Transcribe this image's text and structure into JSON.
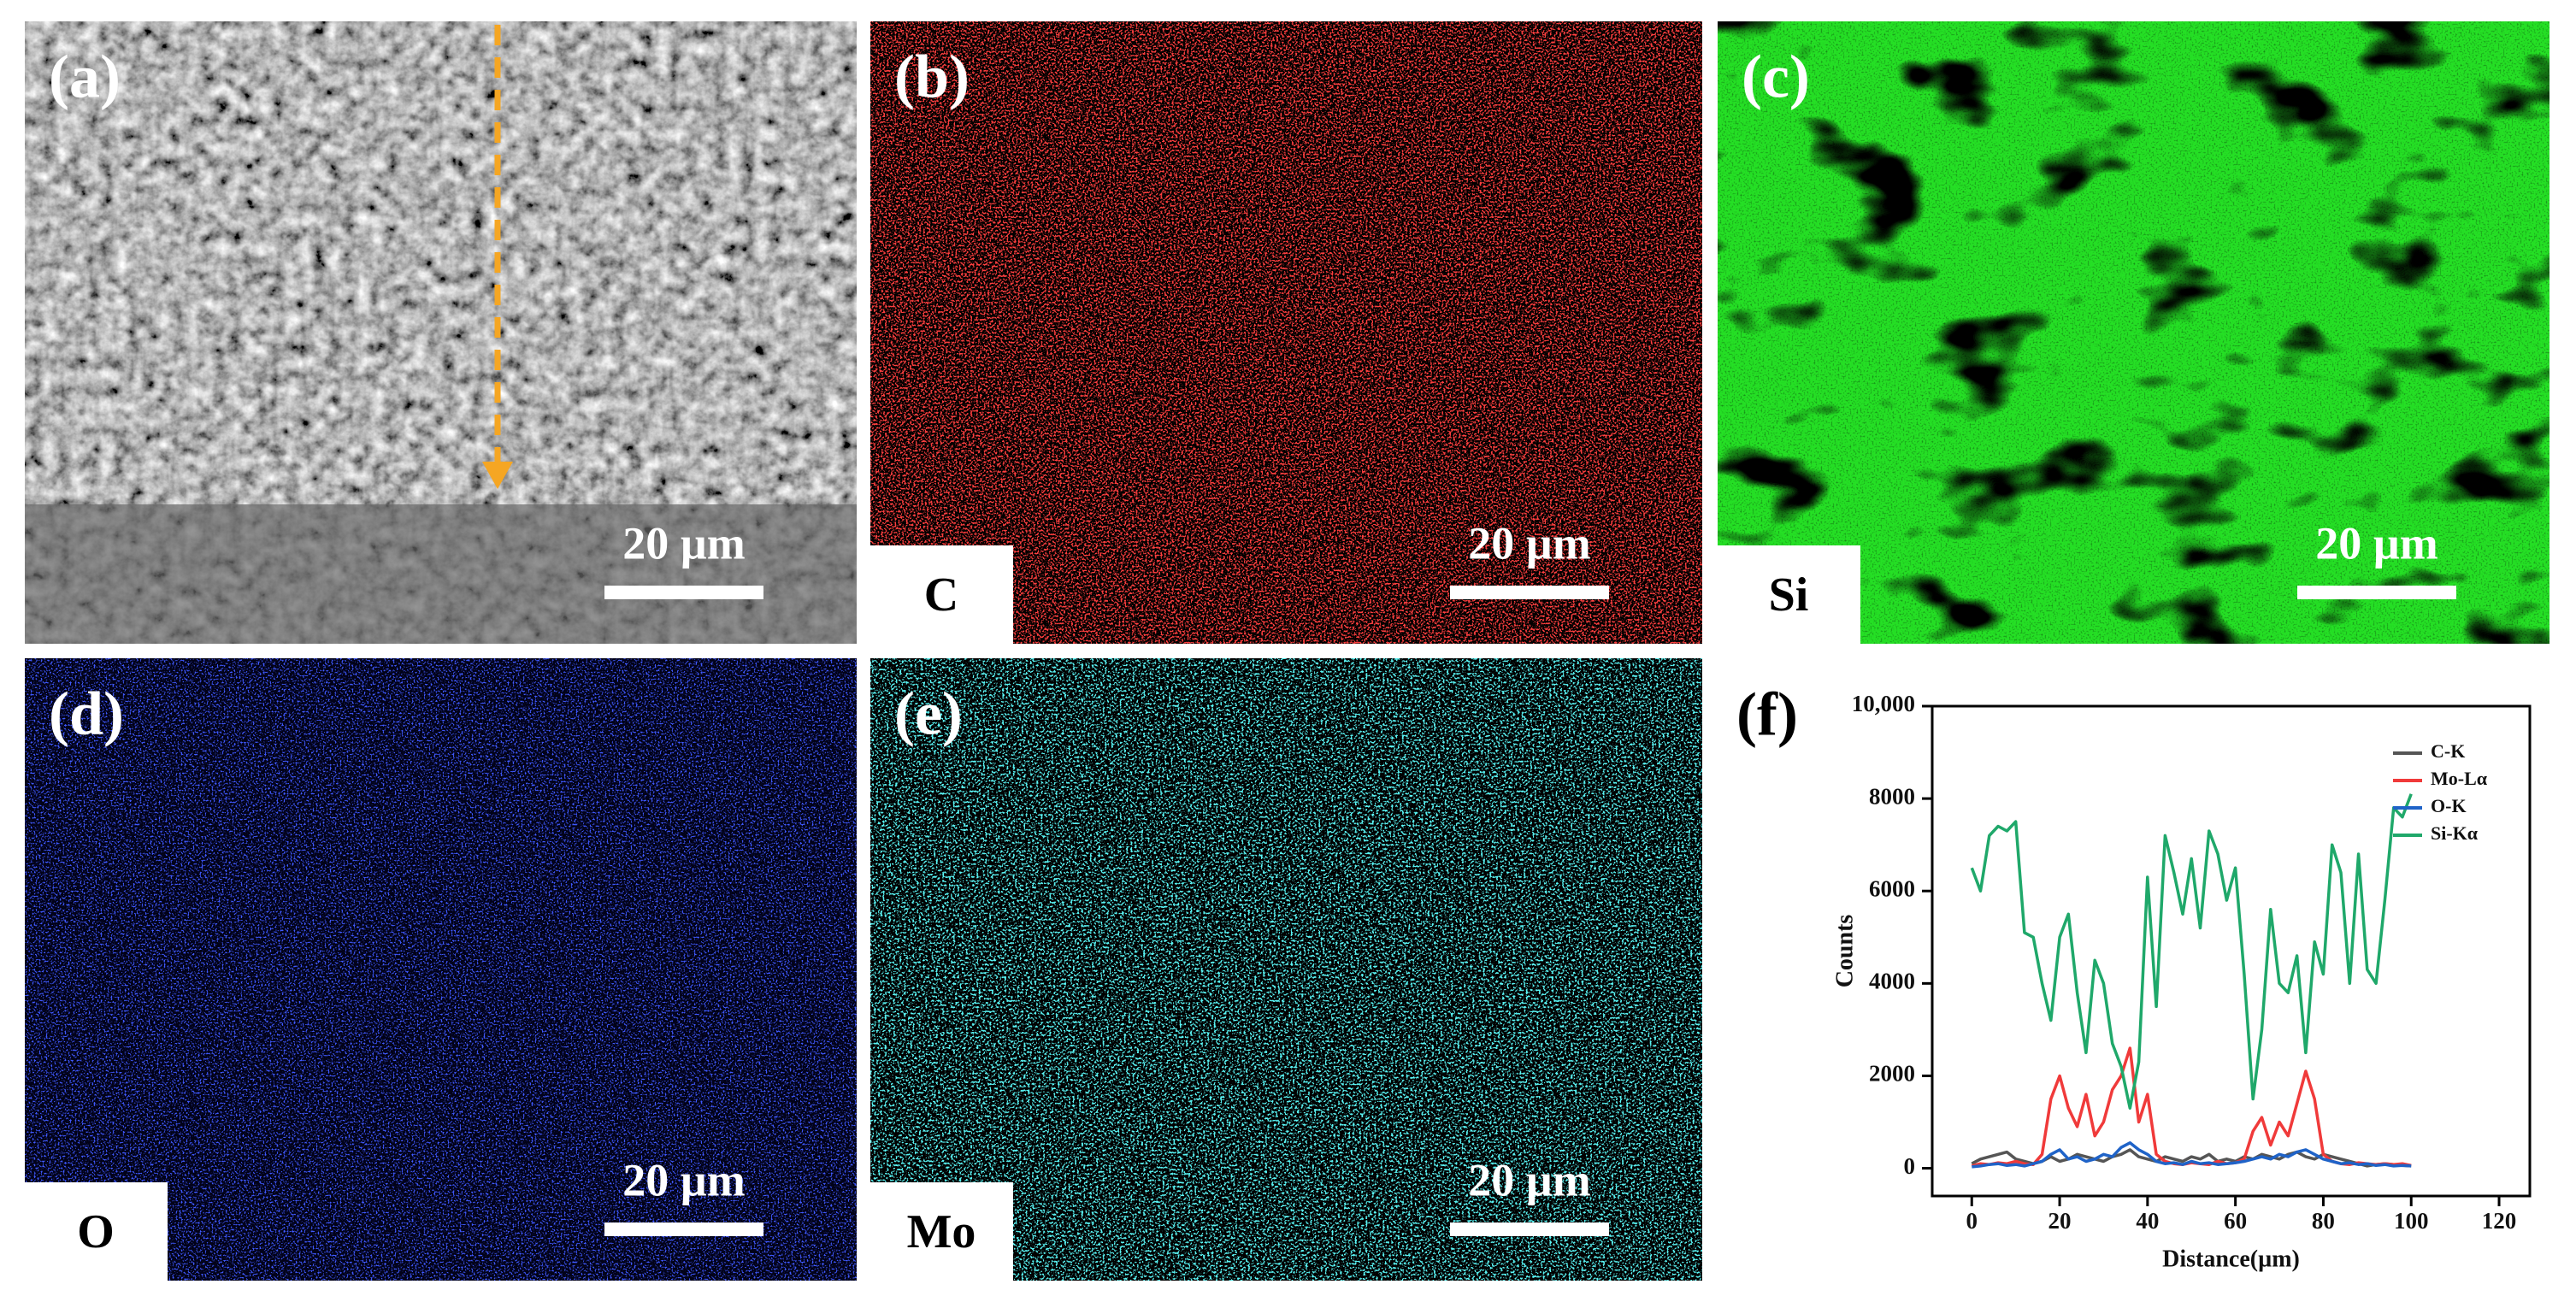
{
  "panels": [
    {
      "label": "(a)",
      "scale_bar": "20 µm"
    },
    {
      "label": "(b)",
      "scale_bar": "20 µm",
      "element": "C"
    },
    {
      "label": "(c)",
      "scale_bar": "20 µm",
      "element": "Si"
    },
    {
      "label": "(d)",
      "scale_bar": "20 µm",
      "element": "O"
    },
    {
      "label": "(e)",
      "scale_bar": "20 µm",
      "element": "Mo"
    }
  ],
  "chart_data": {
    "type": "line",
    "label": "(f)",
    "x_label": "Distance(µm)",
    "y_label": "Counts",
    "xlim": [
      -9,
      127
    ],
    "ylim": [
      -600,
      10000
    ],
    "xticks": [
      0,
      20,
      40,
      60,
      80,
      100,
      120
    ],
    "yticks": [
      0,
      2000,
      4000,
      6000,
      8000,
      {
        "value": 10000,
        "label": "10,000"
      }
    ],
    "legend": "upper right",
    "x": [
      0,
      2,
      4,
      6,
      8,
      10,
      12,
      14,
      16,
      18,
      20,
      22,
      24,
      26,
      28,
      30,
      32,
      34,
      36,
      38,
      40,
      42,
      44,
      46,
      48,
      50,
      52,
      54,
      56,
      58,
      60,
      62,
      64,
      66,
      68,
      70,
      72,
      74,
      76,
      78,
      80,
      82,
      84,
      86,
      88,
      90,
      92,
      94,
      96,
      98,
      100
    ],
    "series": [
      {
        "name": "C-K",
        "color": "#555555",
        "values": [
          100,
          200,
          250,
          300,
          350,
          200,
          150,
          100,
          150,
          250,
          150,
          200,
          300,
          250,
          200,
          150,
          250,
          300,
          400,
          250,
          200,
          150,
          250,
          200,
          150,
          250,
          200,
          300,
          150,
          200,
          150,
          250,
          200,
          300,
          250,
          200,
          300,
          350,
          250,
          200,
          300,
          250,
          200,
          150,
          100,
          50,
          80,
          100,
          80,
          60,
          50
        ]
      },
      {
        "name": "Mo-Lα",
        "color": "#f03a3a",
        "values": [
          50,
          100,
          80,
          120,
          100,
          150,
          100,
          80,
          300,
          1500,
          2000,
          1300,
          900,
          1600,
          700,
          1000,
          1700,
          2000,
          2600,
          1000,
          1600,
          300,
          150,
          100,
          80,
          120,
          100,
          80,
          150,
          100,
          120,
          200,
          800,
          1100,
          500,
          1000,
          700,
          1400,
          2100,
          1500,
          300,
          150,
          100,
          80,
          120,
          100,
          80,
          100,
          80,
          100,
          60
        ]
      },
      {
        "name": "O-K",
        "color": "#1f63c8",
        "values": [
          30,
          50,
          80,
          100,
          60,
          80,
          50,
          100,
          150,
          300,
          400,
          200,
          250,
          150,
          200,
          300,
          250,
          450,
          550,
          400,
          300,
          150,
          100,
          120,
          80,
          150,
          100,
          120,
          80,
          100,
          120,
          150,
          200,
          250,
          200,
          300,
          250,
          350,
          400,
          300,
          200,
          150,
          100,
          120,
          80,
          100,
          60,
          80,
          50,
          60,
          50
        ]
      },
      {
        "name": "Si-Kα",
        "color": "#1fa86a",
        "values": [
          6500,
          6000,
          7200,
          7400,
          7300,
          7500,
          5100,
          5000,
          4000,
          3200,
          5000,
          5500,
          3800,
          2500,
          4500,
          4000,
          2700,
          2200,
          1300,
          2300,
          6300,
          3500,
          7200,
          6400,
          5500,
          6700,
          5200,
          7300,
          6800,
          5800,
          6500,
          4200,
          1500,
          3000,
          5600,
          4000,
          3800,
          4600,
          2500,
          4900,
          4200,
          7000,
          6400,
          4000,
          6800,
          4300,
          4000,
          5800,
          7800,
          7600,
          8100
        ]
      }
    ]
  }
}
